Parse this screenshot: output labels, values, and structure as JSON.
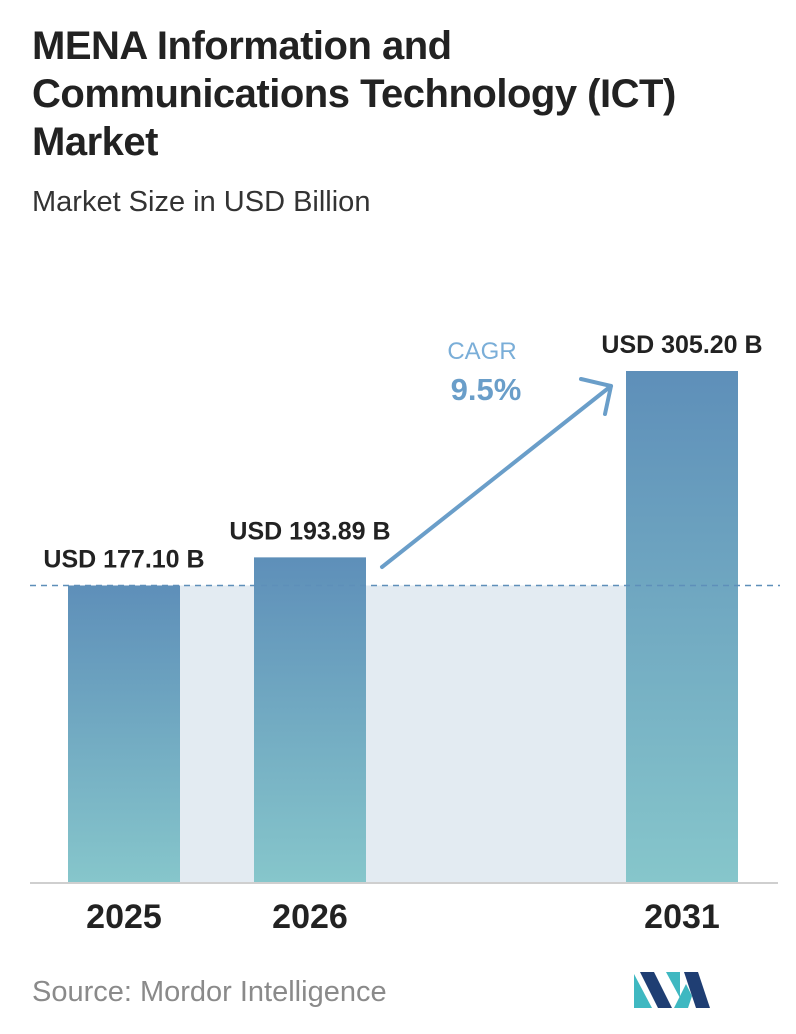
{
  "title": "MENA Information and Communications Technology (ICT) Market",
  "subtitle": "Market Size in USD Billion",
  "chart_data": {
    "type": "bar",
    "categories": [
      "2025",
      "2026",
      "2031"
    ],
    "values": [
      177.1,
      193.89,
      305.2
    ],
    "value_labels": [
      "USD 177.10 B",
      "USD 193.89 B",
      "USD 305.20 B"
    ],
    "ylim": [
      0,
      305.2
    ],
    "grid": false,
    "baseline_reference": 177.1,
    "annotation": {
      "label": "CAGR",
      "value": "9.5%"
    },
    "colors": {
      "bar_top": "#5e8fb9",
      "bar_bottom": "#86c6cb",
      "band": "#e3ebf2",
      "arrow": "#6a9ec9",
      "cagr_label": "#7aaed8",
      "cagr_value": "#6a9ec9"
    }
  },
  "source": {
    "label": "Source:",
    "name": "Mordor Intelligence"
  },
  "logo": {
    "icon": "mordor-intelligence-logo-icon",
    "colors": [
      "#1f3e73",
      "#3fb8c1"
    ]
  }
}
